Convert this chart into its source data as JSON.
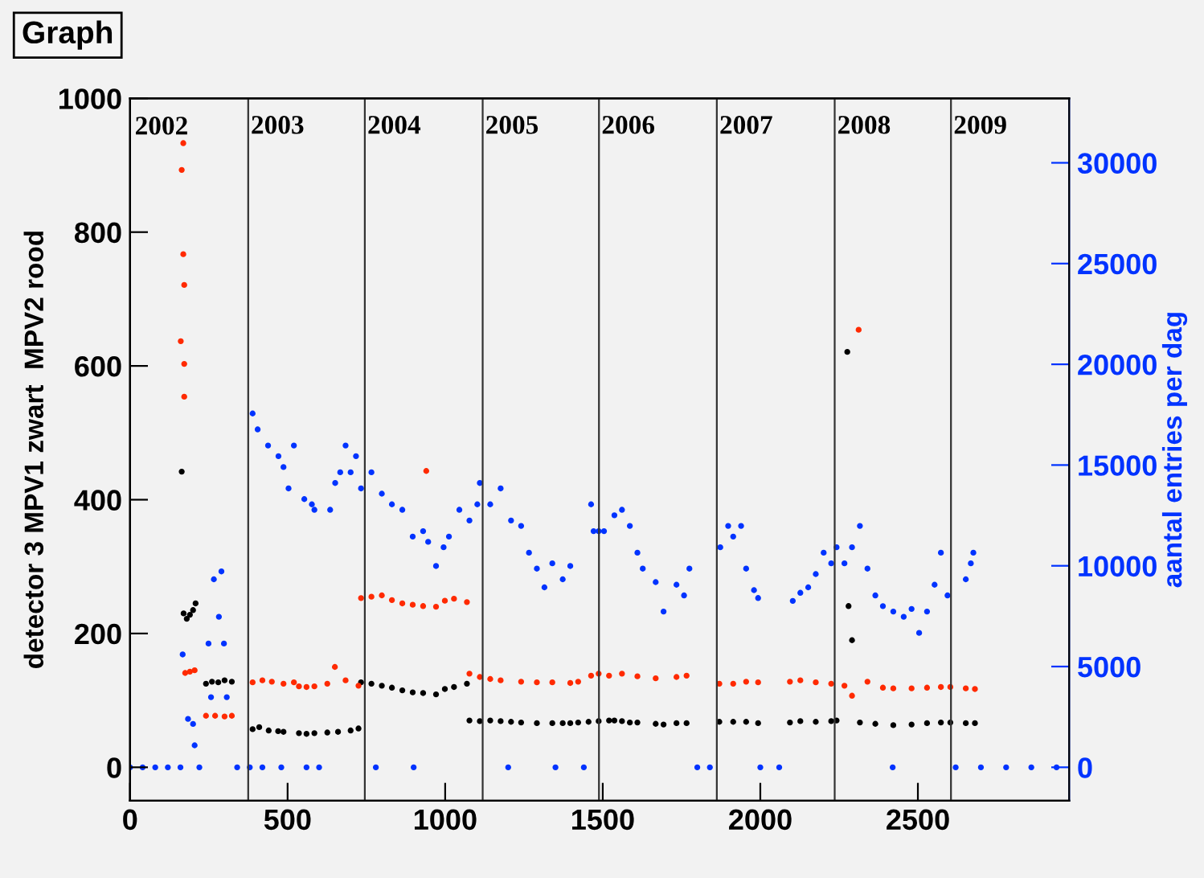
{
  "chart_data": {
    "type": "scatter",
    "title": "Graph",
    "ylabel": "detector 3 MPV1 zwart  MPV2 rood",
    "y2label": "aantal entries per dag",
    "xlim": [
      0,
      2980
    ],
    "xticks": [
      0,
      500,
      1000,
      1500,
      2000,
      2500
    ],
    "ylim": [
      -50,
      1000
    ],
    "yticks": [
      0,
      200,
      400,
      600,
      800,
      1000
    ],
    "y2lim": [
      -1660,
      33200
    ],
    "y2ticks": [
      0,
      5000,
      10000,
      15000,
      20000,
      25000,
      30000
    ],
    "marker": "circle",
    "grid": false,
    "legend": false,
    "annotations": [
      "2002",
      {
        "text": "2003",
        "x": 383,
        "y": 975
      },
      {
        "text": "2004",
        "x": 753,
        "y": 975
      },
      {
        "text": "2005",
        "x": 1127,
        "y": 975
      },
      {
        "text": "2006",
        "x": 1496,
        "y": 975
      },
      {
        "text": "2007",
        "x": 1870,
        "y": 975
      },
      {
        "text": "2008",
        "x": 2244,
        "y": 975
      },
      {
        "text": "2009",
        "x": 2613,
        "y": 975
      }
    ],
    "ref_lines": [
      {
        "axis": "x",
        "value": 375,
        "color": "#333333"
      },
      {
        "axis": "x",
        "value": 745,
        "color": "#333333"
      },
      {
        "axis": "x",
        "value": 1119,
        "color": "#333333"
      },
      {
        "axis": "x",
        "value": 1488,
        "color": "#333333"
      },
      {
        "axis": "x",
        "value": 1862,
        "color": "#333333"
      },
      {
        "axis": "x",
        "value": 2236,
        "color": "#333333"
      },
      {
        "axis": "x",
        "value": 2605,
        "color": "#333333"
      }
    ],
    "series": [
      {
        "color": "#000000",
        "x": [
          164,
          170,
          180,
          190,
          200,
          208,
          241,
          260,
          280,
          300,
          323,
          389,
          410,
          440,
          470,
          487,
          536,
          560,
          585,
          626,
          660,
          700,
          725,
          733,
          766,
          799,
          831,
          864,
          897,
          930,
          971,
          999,
          1028,
          1069,
          1077,
          1110,
          1143,
          1176,
          1209,
          1241,
          1291,
          1340,
          1373,
          1397,
          1422,
          1455,
          1487,
          1520,
          1537,
          1561,
          1586,
          1610,
          1668,
          1693,
          1734,
          1766,
          1870,
          1914,
          1955,
          1993,
          2094,
          2127,
          2176,
          2225,
          2242,
          2276,
          2280,
          2291,
          2316,
          2365,
          2422,
          2480,
          2529,
          2573,
          2603,
          2652,
          2681
        ],
        "values": [
          442,
          230,
          222,
          228,
          235,
          245,
          125,
          128,
          127,
          130,
          128,
          57,
          60,
          55,
          54,
          53,
          51,
          50,
          51,
          52,
          53,
          55,
          58,
          127,
          125,
          122,
          119,
          115,
          112,
          111,
          109,
          117,
          120,
          125,
          70,
          69,
          70,
          69,
          68,
          67,
          66,
          66,
          66,
          66,
          67,
          68,
          69,
          70,
          70,
          69,
          67,
          67,
          65,
          64,
          66,
          66,
          68,
          68,
          68,
          66,
          67,
          69,
          68,
          69,
          70,
          621,
          241,
          190,
          67,
          65,
          63,
          64,
          66,
          67,
          67,
          66,
          66
        ]
      },
      {
        "color": "#ff2a00",
        "x": [
          161,
          164,
          169,
          169,
          172,
          172,
          172,
          175,
          190,
          205,
          241,
          270,
          300,
          323,
          389,
          420,
          450,
          487,
          520,
          536,
          560,
          585,
          626,
          650,
          684,
          725,
          733,
          766,
          799,
          831,
          864,
          897,
          930,
          940,
          971,
          999,
          1028,
          1069,
          1077,
          1110,
          1143,
          1176,
          1241,
          1291,
          1340,
          1397,
          1422,
          1463,
          1487,
          1520,
          1561,
          1610,
          1668,
          1734,
          1766,
          1870,
          1914,
          1955,
          1993,
          2094,
          2127,
          2176,
          2225,
          2267,
          2291,
          2312,
          2340,
          2389,
          2422,
          2480,
          2529,
          2573,
          2603,
          2652,
          2681
        ],
        "values": [
          637,
          893,
          933,
          767,
          721,
          603,
          554,
          141,
          143,
          145,
          77,
          77,
          76,
          77,
          127,
          130,
          128,
          125,
          127,
          121,
          120,
          121,
          125,
          150,
          130,
          122,
          253,
          255,
          257,
          250,
          245,
          243,
          241,
          443,
          240,
          249,
          252,
          247,
          140,
          135,
          132,
          130,
          128,
          127,
          127,
          126,
          128,
          137,
          140,
          137,
          140,
          136,
          133,
          135,
          137,
          125,
          125,
          128,
          127,
          128,
          130,
          127,
          125,
          122,
          107,
          654,
          128,
          119,
          118,
          118,
          119,
          120,
          120,
          118,
          117
        ]
      },
      {
        "color": "#0033ff",
        "axis": "y2",
        "x": [
          0,
          40,
          80,
          120,
          160,
          167,
          184,
          200,
          205,
          220,
          249,
          257,
          266,
          282,
          290,
          298,
          307,
          340,
          380,
          389,
          405,
          420,
          438,
          471,
          480,
          487,
          503,
          520,
          553,
          560,
          577,
          585,
          600,
          635,
          651,
          667,
          684,
          700,
          717,
          733,
          766,
          780,
          799,
          831,
          864,
          897,
          900,
          930,
          946,
          971,
          995,
          1012,
          1045,
          1077,
          1102,
          1110,
          1143,
          1176,
          1200,
          1209,
          1241,
          1266,
          1291,
          1315,
          1340,
          1350,
          1373,
          1397,
          1440,
          1463,
          1471,
          1487,
          1504,
          1537,
          1561,
          1586,
          1610,
          1627,
          1668,
          1693,
          1734,
          1758,
          1775,
          1800,
          1840,
          1873,
          1898,
          1914,
          1939,
          1955,
          1980,
          1993,
          2000,
          2060,
          2103,
          2127,
          2152,
          2176,
          2201,
          2225,
          2242,
          2267,
          2291,
          2316,
          2340,
          2365,
          2389,
          2420,
          2422,
          2455,
          2480,
          2504,
          2529,
          2553,
          2573,
          2594,
          2620,
          2652,
          2668,
          2676,
          2700,
          2780,
          2860,
          2940
        ],
        "values": [
          0,
          0,
          0,
          0,
          0,
          5600,
          2400,
          2150,
          1090,
          0,
          6140,
          3480,
          9330,
          7470,
          9720,
          6140,
          3480,
          0,
          0,
          17560,
          16770,
          0,
          15970,
          15440,
          0,
          14900,
          13840,
          15970,
          13310,
          0,
          13050,
          12780,
          0,
          12780,
          14110,
          14640,
          15970,
          14640,
          15440,
          13840,
          14640,
          0,
          13580,
          13050,
          12780,
          11450,
          0,
          11720,
          11190,
          9990,
          10920,
          11450,
          12780,
          12250,
          13050,
          14110,
          13050,
          13840,
          0,
          12250,
          11980,
          10650,
          9860,
          8930,
          10120,
          0,
          9330,
          9990,
          0,
          13050,
          11720,
          11720,
          11720,
          12510,
          12780,
          11980,
          10650,
          9860,
          9190,
          7730,
          9060,
          8530,
          9860,
          0,
          0,
          10920,
          11980,
          11450,
          11980,
          9860,
          8790,
          8400,
          0,
          0,
          8260,
          8660,
          8930,
          9590,
          10650,
          10120,
          10920,
          10120,
          10920,
          11980,
          9860,
          8530,
          8000,
          0,
          7730,
          7470,
          7860,
          6670,
          7730,
          9060,
          10650,
          8530,
          0,
          9330,
          10120,
          10650,
          0,
          0,
          0,
          0
        ]
      }
    ]
  }
}
